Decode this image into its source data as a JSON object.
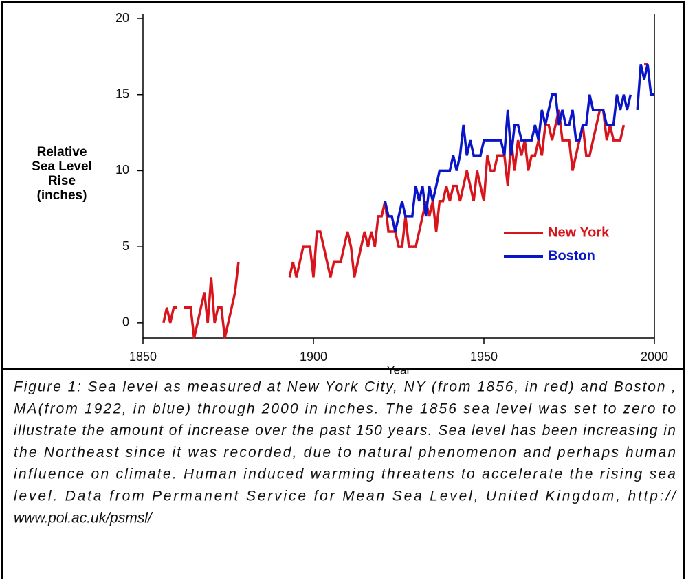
{
  "chart_data": {
    "type": "line",
    "xlabel": "Year",
    "ylabel_lines": [
      "Relative",
      "Sea Level",
      "Rise",
      "(inches)"
    ],
    "xlim": [
      1850,
      2000
    ],
    "ylim": [
      -1,
      20
    ],
    "xticks": [
      1850,
      1900,
      1950,
      2000
    ],
    "yticks": [
      0,
      5,
      10,
      15,
      20
    ],
    "grid": false,
    "legend": "center-right",
    "x": [
      1856,
      1857,
      1858,
      1859,
      1860,
      1861,
      1862,
      1863,
      1864,
      1865,
      1866,
      1867,
      1868,
      1869,
      1870,
      1871,
      1872,
      1873,
      1874,
      1875,
      1876,
      1877,
      1878,
      1879,
      1880,
      1881,
      1882,
      1883,
      1884,
      1885,
      1886,
      1887,
      1888,
      1889,
      1890,
      1891,
      1892,
      1893,
      1894,
      1895,
      1896,
      1897,
      1898,
      1899,
      1900,
      1901,
      1902,
      1903,
      1904,
      1905,
      1906,
      1907,
      1908,
      1909,
      1910,
      1911,
      1912,
      1913,
      1914,
      1915,
      1916,
      1917,
      1918,
      1919,
      1920,
      1921,
      1922,
      1923,
      1924,
      1925,
      1926,
      1927,
      1928,
      1929,
      1930,
      1931,
      1932,
      1933,
      1934,
      1935,
      1936,
      1937,
      1938,
      1939,
      1940,
      1941,
      1942,
      1943,
      1944,
      1945,
      1946,
      1947,
      1948,
      1949,
      1950,
      1951,
      1952,
      1953,
      1954,
      1955,
      1956,
      1957,
      1958,
      1959,
      1960,
      1961,
      1962,
      1963,
      1964,
      1965,
      1966,
      1967,
      1968,
      1969,
      1970,
      1971,
      1972,
      1973,
      1974,
      1975,
      1976,
      1977,
      1978,
      1979,
      1980,
      1981,
      1982,
      1983,
      1984,
      1985,
      1986,
      1987,
      1988,
      1989,
      1990,
      1991,
      1992,
      1993,
      1994,
      1995,
      1996,
      1997,
      1998,
      1999,
      2000
    ],
    "series": [
      {
        "name": "New York",
        "color": "#d8141c",
        "values": [
          0,
          1,
          0,
          1,
          1,
          null,
          1,
          1,
          1,
          -1,
          0,
          1,
          2,
          0,
          3,
          0,
          1,
          1,
          -1,
          0,
          1,
          2,
          4,
          null,
          null,
          null,
          null,
          null,
          null,
          null,
          null,
          null,
          null,
          null,
          null,
          null,
          null,
          3,
          4,
          3,
          4,
          5,
          5,
          5,
          3,
          6,
          6,
          5,
          4,
          3,
          4,
          4,
          4,
          5,
          6,
          5,
          3,
          4,
          5,
          6,
          5,
          6,
          5,
          7,
          7,
          8,
          6,
          6,
          6,
          5,
          5,
          7,
          5,
          5,
          5,
          6,
          7,
          8,
          7,
          8,
          6,
          8,
          8,
          9,
          8,
          9,
          9,
          8,
          9,
          10,
          9,
          8,
          10,
          9,
          8,
          11,
          10,
          10,
          11,
          11,
          11,
          9,
          12,
          10,
          12,
          11,
          12,
          10,
          11,
          11,
          12,
          11,
          13,
          13,
          12,
          13,
          14,
          12,
          12,
          12,
          10,
          11,
          12,
          13,
          11,
          11,
          12,
          13,
          14,
          14,
          12,
          13,
          12,
          12,
          12,
          13,
          null,
          null,
          null,
          null,
          null,
          17,
          17,
          null,
          null
        ]
      },
      {
        "name": "Boston",
        "color": "#0a14c8",
        "values": [
          null,
          null,
          null,
          null,
          null,
          null,
          null,
          null,
          null,
          null,
          null,
          null,
          null,
          null,
          null,
          null,
          null,
          null,
          null,
          null,
          null,
          null,
          null,
          null,
          null,
          null,
          null,
          null,
          null,
          null,
          null,
          null,
          null,
          null,
          null,
          null,
          null,
          null,
          null,
          null,
          null,
          null,
          null,
          null,
          null,
          null,
          null,
          null,
          null,
          null,
          null,
          null,
          null,
          null,
          null,
          null,
          null,
          null,
          null,
          null,
          null,
          null,
          null,
          null,
          null,
          8,
          7,
          7,
          6,
          7,
          8,
          7,
          7,
          7,
          9,
          8,
          9,
          7,
          9,
          8,
          9,
          10,
          10,
          10,
          10,
          11,
          10,
          11,
          13,
          11,
          12,
          11,
          11,
          11,
          12,
          12,
          12,
          12,
          12,
          12,
          11,
          14,
          11,
          13,
          13,
          12,
          12,
          12,
          12,
          13,
          12,
          14,
          13,
          14,
          15,
          15,
          13,
          14,
          13,
          13,
          14,
          12,
          12,
          13,
          13,
          15,
          14,
          14,
          14,
          14,
          13,
          13,
          13,
          15,
          14,
          15,
          14,
          15,
          null,
          14,
          17,
          16,
          17,
          15,
          15
        ]
      }
    ],
    "caption_lines": [
      "Figure 1: Sea level as measured at New York City, NY (from 1856, in red) and Boston ,",
      "MA(from 1922, in blue) through 2000 in inches.  The 1856 sea level was set to zero to",
      "illustrate the amount of increase over the past 150 years. Sea level has been increasing in",
      "the Northeast since it was recorded, due to natural phenomenon and perhaps human",
      "influence on climate.  Human induced warming threatens to accelerate the rising sea",
      "level. Data from Permanent Service for Mean Sea Level, United Kingdom, http://",
      "www.pol.ac.uk/psmsl/"
    ]
  }
}
